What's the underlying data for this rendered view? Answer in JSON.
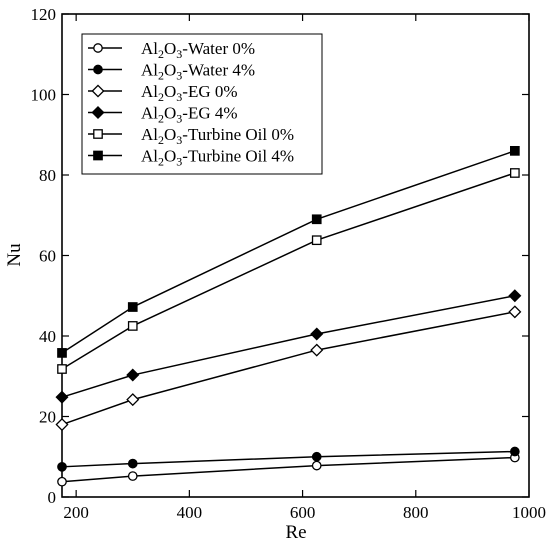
{
  "chart_data": {
    "type": "line",
    "xlabel": "Re",
    "ylabel": "Nu",
    "xlim": [
      175,
      1000
    ],
    "ylim": [
      0,
      120
    ],
    "xticks": [
      200,
      400,
      600,
      800,
      1000
    ],
    "yticks": [
      0,
      20,
      40,
      60,
      80,
      100,
      120
    ],
    "xtick_labels": [
      "200",
      "400",
      "600",
      "800",
      "1000"
    ],
    "ytick_labels": [
      "0",
      "20",
      "40",
      "60",
      "80",
      "100",
      "120"
    ],
    "grid": false,
    "legend_position": "top-left",
    "x": [
      175,
      300,
      625,
      975
    ],
    "series": [
      {
        "name": "Al2O3-Water 0%",
        "legend": {
          "a": "Al",
          "s1": "2",
          "b": "O",
          "s2": "3",
          "c": "-Water 0%"
        },
        "marker": "circle",
        "filled": false,
        "values": [
          3.8,
          5.2,
          7.8,
          9.8
        ]
      },
      {
        "name": "Al2O3-Water 4%",
        "legend": {
          "a": "Al",
          "s1": "2",
          "b": "O",
          "s2": "3",
          "c": "-Water 4%"
        },
        "marker": "circle",
        "filled": true,
        "values": [
          7.5,
          8.3,
          10.0,
          11.3
        ]
      },
      {
        "name": "Al2O3-EG 0%",
        "legend": {
          "a": "Al",
          "s1": "2",
          "b": "O",
          "s2": "3",
          "c": "-EG 0%"
        },
        "marker": "diamond",
        "filled": false,
        "values": [
          18.0,
          24.2,
          36.5,
          46.0
        ]
      },
      {
        "name": "Al2O3-EG 4%",
        "legend": {
          "a": "Al",
          "s1": "2",
          "b": "O",
          "s2": "3",
          "c": "-EG 4%"
        },
        "marker": "diamond",
        "filled": true,
        "values": [
          24.8,
          30.3,
          40.5,
          50.0
        ]
      },
      {
        "name": "Al2O3-Turbine Oil 0%",
        "legend": {
          "a": "Al",
          "s1": "2",
          "b": "O",
          "s2": "3",
          "c": "-Turbine Oil 0%"
        },
        "marker": "square",
        "filled": false,
        "values": [
          31.8,
          42.5,
          63.8,
          80.5
        ]
      },
      {
        "name": "Al2O3-Turbine Oil 4%",
        "legend": {
          "a": "Al",
          "s1": "2",
          "b": "O",
          "s2": "3",
          "c": "-Turbine Oil 4%"
        },
        "marker": "square",
        "filled": true,
        "values": [
          35.8,
          47.2,
          69.0,
          86.0
        ]
      }
    ],
    "colors": {
      "line": "#000000",
      "background": "#ffffff"
    }
  }
}
